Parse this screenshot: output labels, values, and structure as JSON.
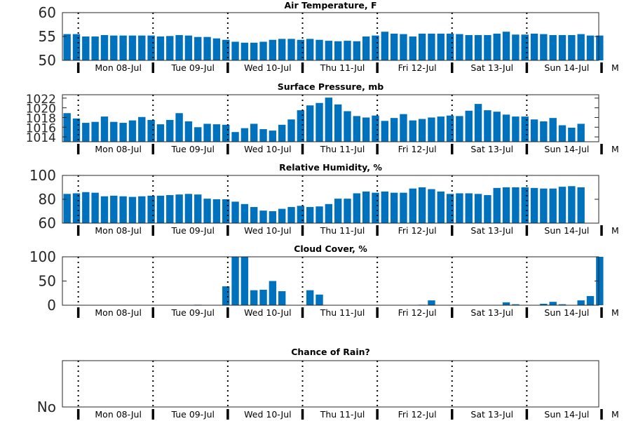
{
  "chart_data": [
    {
      "type": "bar",
      "title": "Air Temperature, F",
      "ylim": [
        50,
        60
      ],
      "yticks": [
        "50",
        "55",
        "60"
      ],
      "xtick_labels": [
        "Mon 08-Jul",
        "Tue 09-Jul",
        "Wed 10-Jul",
        "Thu 11-Jul",
        "Fri 12-Jul",
        "Sat 13-Jul",
        "Sun 14-Jul",
        "M"
      ],
      "color": "#0072BD",
      "values": [
        55.5,
        55.5,
        55.0,
        55.0,
        55.3,
        55.2,
        55.2,
        55.2,
        55.2,
        55.2,
        55.0,
        55.1,
        55.3,
        55.2,
        54.9,
        54.9,
        54.6,
        54.3,
        53.9,
        53.7,
        53.7,
        53.9,
        54.3,
        54.5,
        54.5,
        54.3,
        54.5,
        54.3,
        54.1,
        54.0,
        54.1,
        54.0,
        55.0,
        55.2,
        56.0,
        55.6,
        55.5,
        55.0,
        55.6,
        55.6,
        55.6,
        55.6,
        55.5,
        55.3,
        55.3,
        55.3,
        55.6,
        56.0,
        55.4,
        55.4,
        55.6,
        55.5,
        55.3,
        55.3,
        55.3,
        55.5,
        55.2,
        55.2
      ]
    },
    {
      "type": "bar",
      "title": "Surface Pressure, mb",
      "ylim": [
        1013,
        1022.7
      ],
      "yticks": [
        "1014",
        "1016",
        "1018",
        "1020",
        "1022"
      ],
      "xtick_labels": [
        "Mon 08-Jul",
        "Tue 09-Jul",
        "Wed 10-Jul",
        "Thu 11-Jul",
        "Fri 12-Jul",
        "Sat 13-Jul",
        "Sun 14-Jul",
        "M"
      ],
      "color": "#0072BD",
      "values": [
        1018.9,
        1017.8,
        1016.9,
        1017.1,
        1018.2,
        1017.1,
        1016.9,
        1017.4,
        1018.1,
        1017.5,
        1016.6,
        1017.5,
        1018.9,
        1017.2,
        1016.0,
        1016.7,
        1016.6,
        1016.5,
        1015.0,
        1015.8,
        1016.7,
        1015.6,
        1015.3,
        1016.5,
        1017.6,
        1019.5,
        1020.5,
        1021.0,
        1022.1,
        1020.7,
        1019.3,
        1018.3,
        1018.0,
        1018.4,
        1017.3,
        1017.9,
        1018.7,
        1017.4,
        1017.7,
        1018.0,
        1018.2,
        1018.4,
        1018.3,
        1019.4,
        1020.8,
        1019.5,
        1019.2,
        1018.6,
        1018.2,
        1018.2,
        1017.6,
        1017.2,
        1017.9,
        1016.4,
        1015.9,
        1016.7
      ]
    },
    {
      "type": "bar",
      "title": "Relative Humidity, %",
      "ylim": [
        60,
        100
      ],
      "yticks": [
        "60",
        "80",
        "100"
      ],
      "xtick_labels": [
        "Mon 08-Jul",
        "Tue 09-Jul",
        "Wed 10-Jul",
        "Thu 11-Jul",
        "Fri 12-Jul",
        "Sat 13-Jul",
        "Sun 14-Jul",
        "M"
      ],
      "color": "#0072BD",
      "values": [
        84.5,
        85.0,
        86.0,
        85.5,
        82.5,
        83.0,
        82.5,
        82.0,
        82.5,
        83.0,
        83.0,
        83.5,
        84.0,
        84.5,
        84.0,
        80.5,
        80.0,
        80.0,
        78.0,
        76.0,
        73.5,
        70.5,
        70.0,
        72.0,
        73.5,
        74.5,
        73.5,
        74.0,
        76.0,
        80.5,
        80.5,
        85.0,
        86.5,
        85.5,
        86.5,
        85.5,
        85.5,
        89.0,
        90.0,
        88.5,
        86.5,
        84.5,
        85.0,
        85.0,
        84.5,
        83.5,
        89.5,
        90.0,
        90.0,
        90.0,
        89.5,
        89.0,
        89.0,
        90.5,
        91.0,
        90.0
      ]
    },
    {
      "type": "bar",
      "title": "Cloud Cover, %",
      "ylim": [
        0,
        100
      ],
      "yticks": [
        "0",
        "50",
        "100"
      ],
      "xtick_labels": [
        "Mon 08-Jul",
        "Tue 09-Jul",
        "Wed 10-Jul",
        "Thu 11-Jul",
        "Fri 12-Jul",
        "Sat 13-Jul",
        "Sun 14-Jul",
        "M"
      ],
      "color": "#0072BD",
      "values": [
        0,
        0,
        0,
        0,
        0,
        0,
        0,
        0,
        0,
        0,
        0,
        0,
        0,
        0,
        1,
        0,
        0,
        39,
        100,
        100,
        31,
        32,
        50,
        29,
        0,
        0,
        31,
        22,
        0,
        0,
        0,
        0,
        0,
        0,
        0,
        0,
        0,
        0,
        1,
        10,
        0,
        0,
        0,
        0,
        0,
        0,
        0,
        6,
        2,
        0,
        0,
        3,
        7,
        2,
        0,
        10,
        19,
        100
      ]
    },
    {
      "type": "bar",
      "title": "Chance of Rain?",
      "yticks": [
        "No"
      ],
      "xtick_labels": [
        "Mon 08-Jul",
        "Tue 09-Jul",
        "Wed 10-Jul",
        "Thu 11-Jul",
        "Fri 12-Jul",
        "Sat 13-Jul",
        "Sun 14-Jul",
        "M"
      ],
      "color": "#0072BD",
      "values": []
    }
  ]
}
